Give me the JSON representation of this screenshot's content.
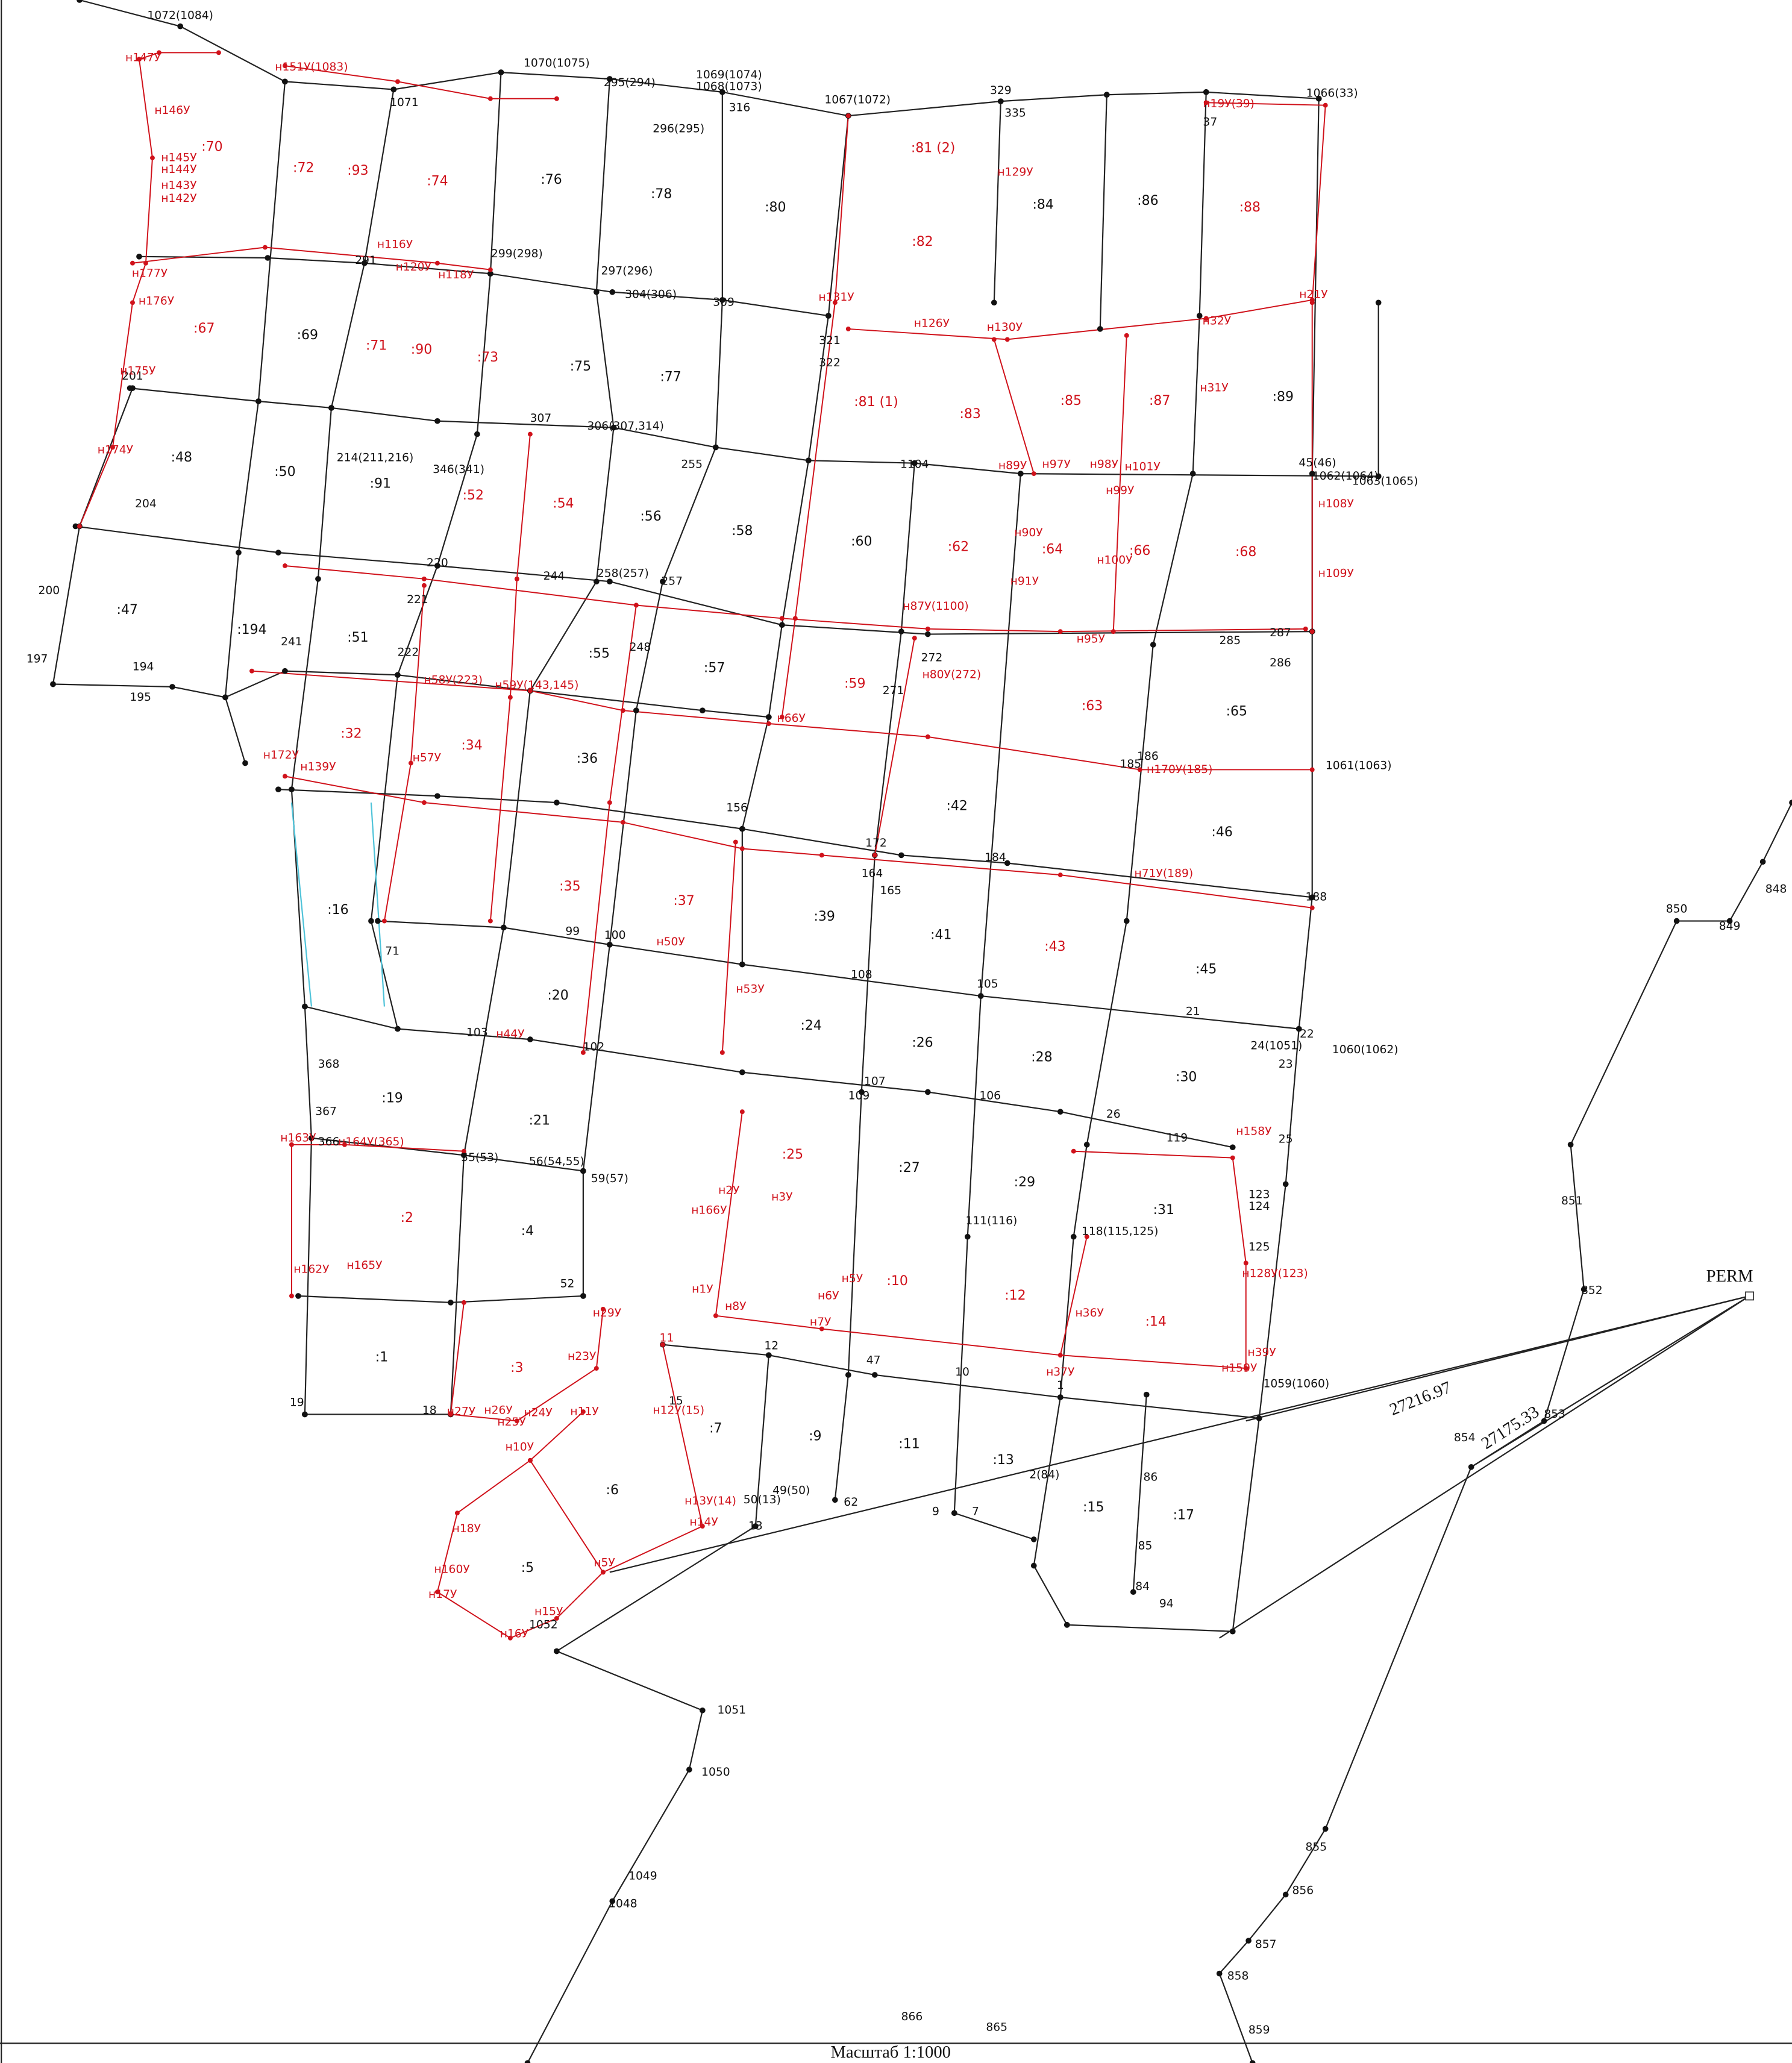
{
  "map": {
    "black_points": [
      "1072(1084)",
      "1070(1075)",
      "1071",
      "295(294)",
      "1069(1074)",
      "1068(1073)",
      "316",
      "296(295)",
      "1067(1072)",
      "329",
      "335",
      "1066(33)",
      "37",
      "291",
      "299(298)",
      "297(296)",
      "304(306)",
      "309",
      "321",
      "322",
      "201",
      "214(211,216)",
      "346(341)",
      "306(307,314)",
      "307",
      "255",
      "1104",
      "1062(1064)",
      "1063(1065)",
      "45(46)",
      "204",
      "200",
      "197",
      "194",
      "195",
      "220",
      "221",
      "222",
      "244",
      "258(257)",
      "257",
      "248",
      "241",
      "271",
      "272",
      "285",
      "287",
      "286",
      "1061(1063)",
      "186",
      "185",
      "188",
      "184",
      "172",
      "164",
      "165",
      "156",
      "1051",
      "1050",
      "1049",
      "1048",
      "866",
      "865",
      "850",
      "849",
      "848",
      "851",
      "852",
      "853",
      "854",
      "855",
      "856",
      "857",
      "858",
      "859",
      "25",
      "24(1051)",
      "22",
      "23",
      "1060(1062)",
      "21",
      "26",
      "106",
      "107",
      "109",
      "111(116)",
      "118(115,125)",
      "119",
      "124",
      "125",
      "123",
      "1059(1060)",
      "10",
      "12",
      "47",
      "15",
      "13",
      "49(50)",
      "50(13)",
      "62",
      "9",
      "7",
      "86",
      "85",
      "84",
      "94",
      "2(84)",
      "1052",
      "19",
      "18",
      "368",
      "367",
      "366",
      "55(53)",
      "56(54,55)",
      "59(57)",
      "52",
      "103",
      "102",
      "108",
      "105",
      "99",
      "100",
      "71",
      "1"
    ],
    "red_points": [
      "н147У",
      "н146У",
      "н145У",
      "н144У",
      "н143У",
      "н142У",
      "н151У(1083)",
      "н175У",
      "н174У",
      "н177У",
      "н176У",
      "н120У",
      "н118У",
      "н116У",
      "н108У",
      "н109У",
      "н129У",
      "н131У",
      "н126У",
      "н130У",
      "н89У",
      "н90У",
      "н91У",
      "н95У",
      "н87У(1100)",
      "н80У(272)",
      "н66У",
      "н57У",
      "н58У(223)",
      "н59У(143,145)",
      "н139У",
      "н172У",
      "н170У(185)",
      "н71У(189)",
      "н50У",
      "н53У",
      "н44У",
      "н163У",
      "н164У(365)",
      "н165У",
      "н162У",
      "н166У",
      "н3У",
      "н2У",
      "н1У",
      "н8У",
      "н5У",
      "н6У",
      "н7У",
      "н29У",
      "н23У",
      "н27У",
      "н26У",
      "н24У",
      "н25У",
      "н10У",
      "н11У",
      "н18У",
      "н160У",
      "н17У",
      "н16У",
      "н15У",
      "н5У",
      "н14У",
      "н13У(14)",
      "н12У(15)",
      "11",
      "н36У",
      "н37У",
      "н39У",
      "н159У",
      "н158У",
      "н128У(123)",
      "н32У",
      "н31У",
      "н21У",
      "н19У(39)",
      "н98У",
      "н99У",
      "н100У",
      "н101У",
      "н97У"
    ],
    "black_parcels": [
      ":1",
      ":4",
      ":5",
      ":6",
      ":7",
      ":9",
      ":11",
      ":13",
      ":15",
      ":16",
      ":17",
      ":19",
      ":20",
      ":21",
      ":24",
      ":26",
      ":27",
      ":28",
      ":29",
      ":30",
      ":31",
      ":36",
      ":39",
      ":41",
      ":42",
      ":45",
      ":46",
      ":47",
      ":48",
      ":50",
      ":51",
      ":55",
      ":56",
      ":57",
      ":58",
      ":60",
      ":65",
      ":69",
      ":75",
      ":76",
      ":77",
      ":78",
      ":80",
      ":84",
      ":86",
      ":89",
      ":91",
      ":194"
    ],
    "red_parcels": [
      ":2",
      ":3",
      ":10",
      ":12",
      ":14",
      ":25",
      ":32",
      ":34",
      ":35",
      ":37",
      ":43",
      ":52",
      ":54",
      ":59",
      ":62",
      ":63",
      ":64",
      ":66",
      ":67",
      ":68",
      ":70",
      ":71",
      ":72",
      ":73",
      ":74",
      ":81 (1)",
      ":81 (2)",
      ":82",
      ":83",
      ":85",
      ":87",
      ":88",
      ":90",
      ":93"
    ],
    "station": "PERM",
    "distances": [
      "27216.97",
      "27175.33"
    ],
    "scale": "Масштаб 1:1000"
  }
}
